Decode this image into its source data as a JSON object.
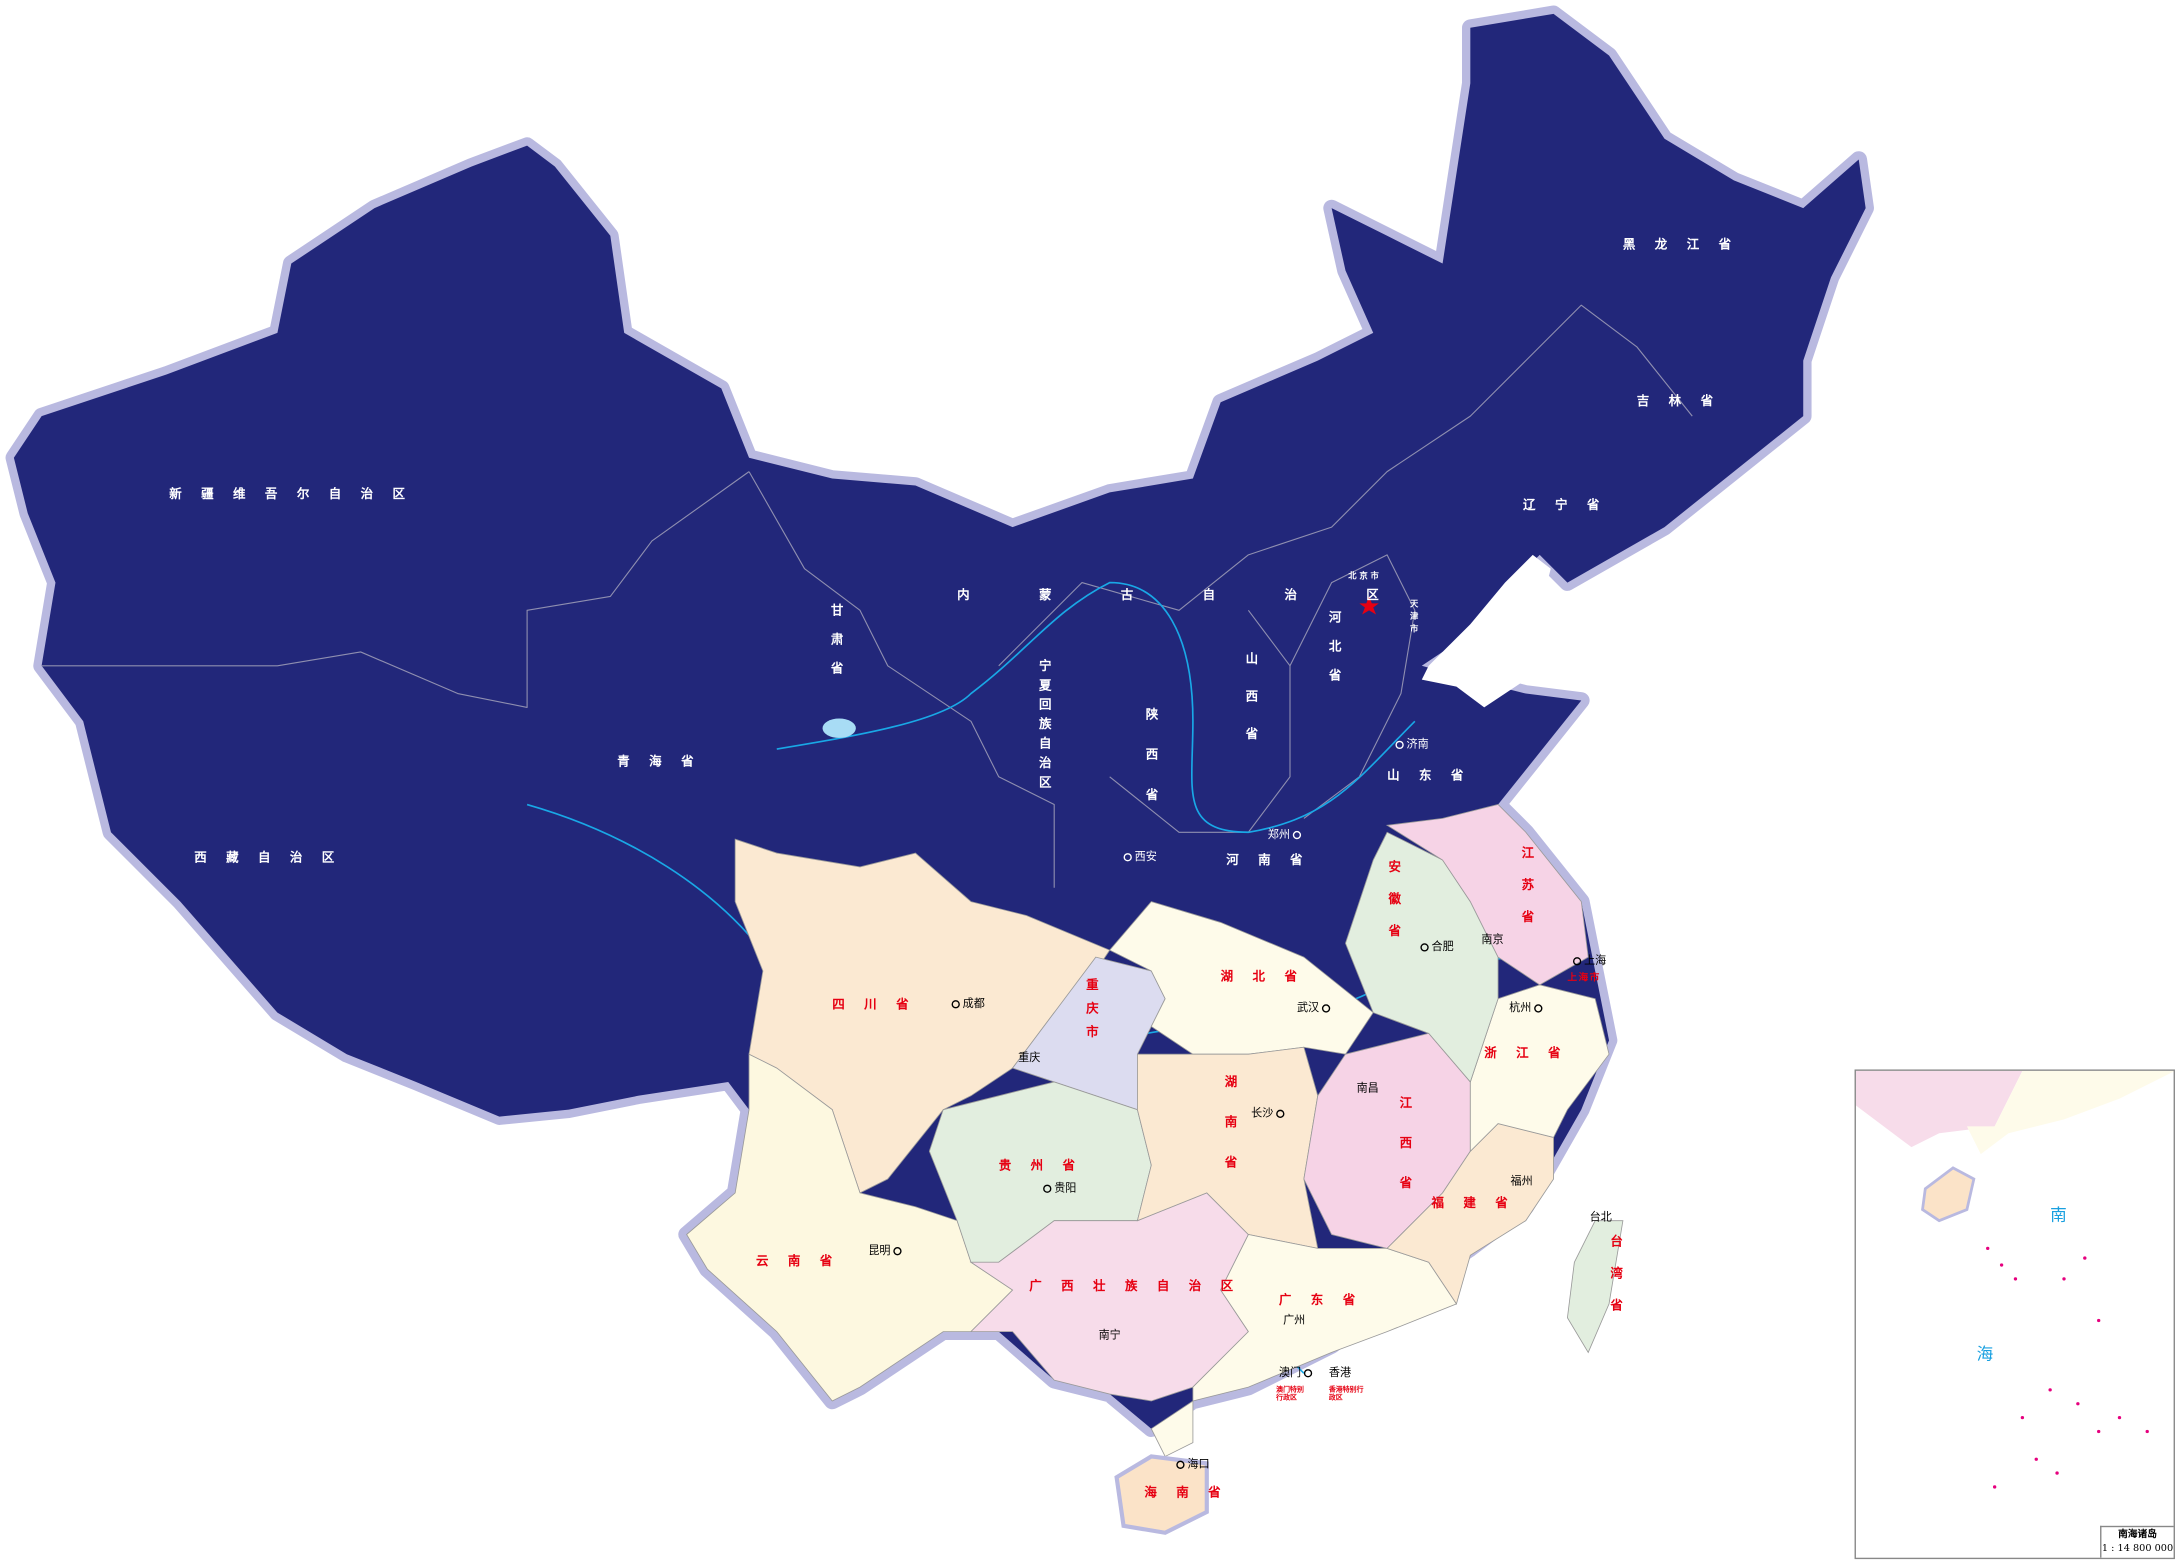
{
  "colors": {
    "north": "#22277a",
    "halo": "#b9b9e0",
    "river": "#19a8e6",
    "label_red": "#e60012",
    "sichuan": "#fbe9d2",
    "pink": "#f6d3e6",
    "green": "#e2eedf",
    "cream": "#fefbea",
    "lavender": "#dcdcf0"
  },
  "provinces": {
    "xinjiang": "新疆维吾尔自治区",
    "xizang": "西藏自治区",
    "qinghai": "青海省",
    "gansu": "甘肃省",
    "neimenggu": "内蒙古自治区",
    "heilongjiang": "黑龙江省",
    "jilin": "吉林省",
    "liaoning": "辽宁省",
    "beijing": "北京市",
    "tianjin": "天津市",
    "hebei": "河北省",
    "shanxi": "山西省",
    "shandong": "山东省",
    "henan": "河南省",
    "shaanxi": "陕西省",
    "ningxia": "宁夏回族自治区",
    "sichuan": "四川省",
    "chongqing": "重庆市",
    "hubei": "湖北省",
    "anhui": "安徽省",
    "jiangsu": "江苏省",
    "shanghai": "上海市",
    "zhejiang": "浙江省",
    "jiangxi": "江西省",
    "hunan": "湖南省",
    "guizhou": "贵州省",
    "yunnan": "云南省",
    "guangxi": "广西壮族自治区",
    "guangdong": "广东省",
    "fujian": "福建省",
    "taiwan": "台湾省",
    "hainan": "海南省",
    "aomen": "澳门特别行政区",
    "xianggang": "香港特别行政区"
  },
  "cities": {
    "chengdu": "成都",
    "chongqing": "重庆",
    "guiyang": "贵阳",
    "kunming": "昆明",
    "nanning": "南宁",
    "guangzhou": "广州",
    "aomen": "澳门",
    "xianggang": "香港",
    "haikou": "海口",
    "changsha": "长沙",
    "wuhan": "武汉",
    "nanchang": "南昌",
    "fuzhou": "福州",
    "hangzhou": "杭州",
    "nanjing": "南京",
    "hefei": "合肥",
    "shanghai": "上海",
    "jinan": "济南",
    "zhengzhou": "郑州",
    "xian": "西安",
    "taibei": "台北"
  },
  "inset": {
    "sea_1": "南",
    "sea_2": "海",
    "title": "南海诸岛",
    "scale": "1 : 14 800 000"
  }
}
